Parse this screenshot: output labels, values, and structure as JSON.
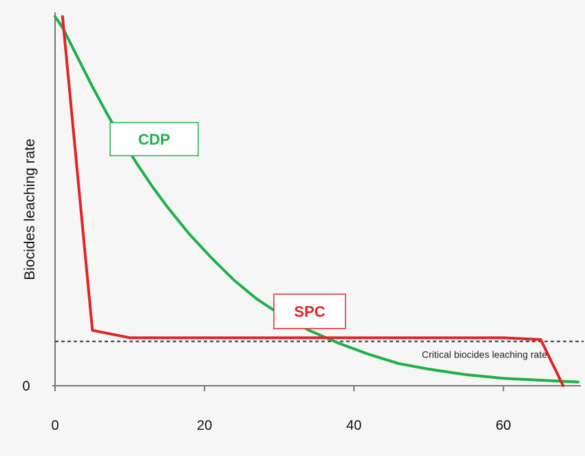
{
  "chart_data": {
    "type": "line",
    "title": "",
    "xlabel": "",
    "ylabel": "Biocides leaching rate",
    "xlim": [
      0,
      70
    ],
    "ylim": [
      0,
      100
    ],
    "x_ticks": [
      0,
      20,
      40,
      60
    ],
    "x_tick_labels": [
      "0",
      "20",
      "40",
      "60"
    ],
    "y_ticks": [
      0
    ],
    "y_tick_labels": [
      "0"
    ],
    "grid": false,
    "series": [
      {
        "name": "CDP",
        "color": "#1fb04a",
        "x": [
          0,
          1,
          3,
          5,
          7,
          9,
          11,
          13,
          15,
          18,
          21,
          24,
          27,
          30,
          34,
          38,
          42,
          46,
          50,
          55,
          60,
          65,
          70
        ],
        "y": [
          100,
          97,
          89,
          81,
          73.5,
          66.5,
          60,
          54,
          48.5,
          41,
          34.5,
          28.5,
          23.5,
          19.5,
          15,
          11.5,
          8.5,
          6,
          4.5,
          3,
          2,
          1.5,
          1
        ]
      },
      {
        "name": "SPC",
        "color": "#e02525",
        "x": [
          1,
          5,
          10,
          60,
          65,
          68
        ],
        "y": [
          100,
          15,
          13,
          13,
          12.5,
          0
        ]
      }
    ],
    "reference_lines": [
      {
        "label": "Critical biocides leaching rate",
        "y": 12,
        "style": "dashed",
        "color": "#333333"
      }
    ]
  }
}
